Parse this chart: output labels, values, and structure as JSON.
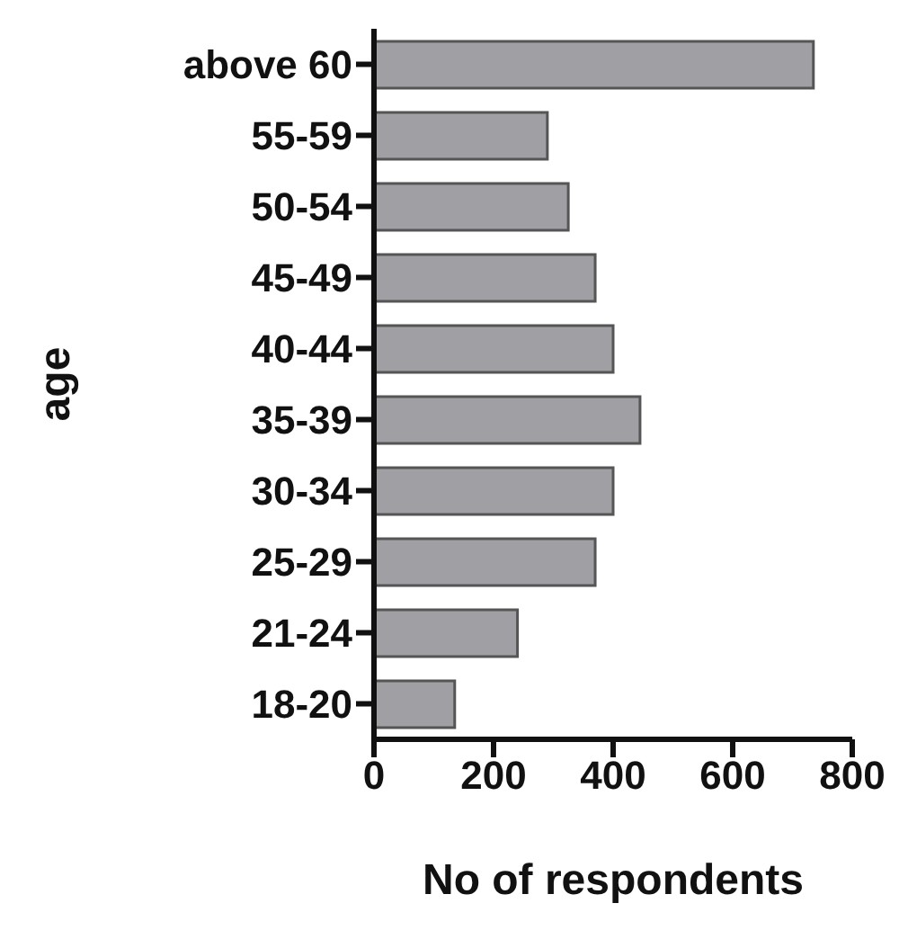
{
  "chart_data": {
    "type": "bar",
    "orientation": "horizontal",
    "xlabel": "No of respondents",
    "ylabel": "age",
    "categories": [
      "above 60",
      "55-59",
      "50-54",
      "45-49",
      "40-44",
      "35-39",
      "30-34",
      "25-29",
      "21-24",
      "18-20"
    ],
    "values": [
      735,
      290,
      325,
      370,
      400,
      445,
      400,
      370,
      240,
      135
    ],
    "color": "#a0a0a4",
    "xlim": [
      0,
      800
    ],
    "xticks": [
      0,
      200,
      400,
      600,
      800
    ],
    "grid": false,
    "legend": false
  }
}
